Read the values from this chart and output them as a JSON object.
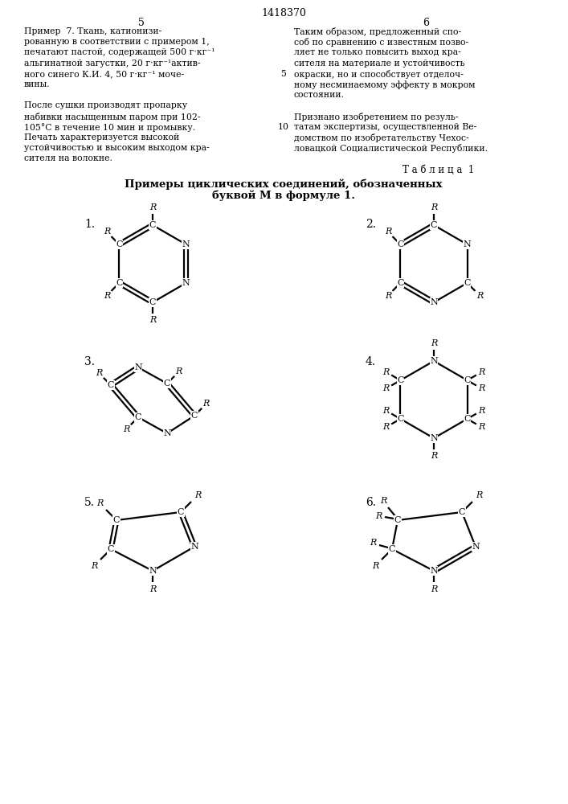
{
  "page_title": "1418370",
  "col_left_num": "5",
  "col_right_num": "6",
  "left_text": [
    "Пример  7. Ткань, катионизи-",
    "рованную в соответствии с примером 1,",
    "печатают пастой, содержащей 500 г·кг⁻¹",
    "альгинатной загустки, 20 г·кг⁻¹актив-",
    "ного синего К.И. 4, 50 г·кг⁻¹ моче-",
    "вины.",
    "",
    "После сушки производят пропарку",
    "набивки насыщенным паром при 102-",
    "105°С в течение 10 мин и промывку.",
    "Печать характеризуется высокой",
    "устойчивостью и высоким выходом кра-",
    "сителя на волокне."
  ],
  "right_text": [
    "Таким образом, предложенный спо-",
    "соб по сравнению с известным позво-",
    "ляет не только повысить выход кра-",
    "сителя на материале и устойчивость",
    "окраски, но и способствует отделоч-",
    "ному несминаемому эффекту в мокром",
    "состоянии.",
    "",
    "Признано изобретением по резуль-",
    "татам экспертизы, осуществленной Ве-",
    "домством по изобретательству Чехос-",
    "ловацкой Социалистической Республики."
  ],
  "table_label": "Т а б л и ц а  1",
  "table_title_line1": "Примеры циклических соединений, обозначенных",
  "table_title_line2": "буквой М в формуле 1.",
  "bg_color": "#ffffff"
}
